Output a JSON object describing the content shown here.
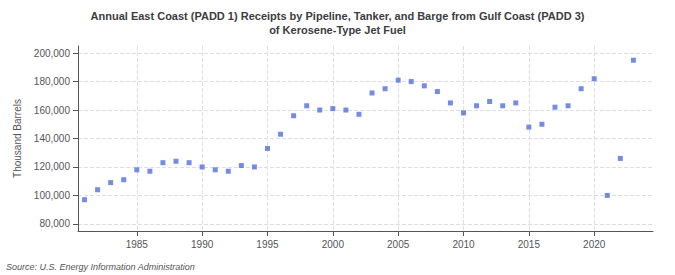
{
  "chart_data": {
    "type": "scatter",
    "title": "Annual East Coast (PADD 1) Receipts by Pipeline, Tanker, and Barge from Gulf Coast (PADD 3)\nof Kerosene-Type Jet Fuel",
    "ylabel": "Thousand Barrels",
    "annotations": [
      "Source: U.S. Energy Information Administration"
    ],
    "marker": "square",
    "grid": true,
    "x": [
      1981,
      1982,
      1983,
      1984,
      1985,
      1986,
      1987,
      1988,
      1989,
      1990,
      1991,
      1992,
      1993,
      1994,
      1995,
      1996,
      1997,
      1998,
      1999,
      2000,
      2001,
      2002,
      2003,
      2004,
      2005,
      2006,
      2007,
      2008,
      2009,
      2010,
      2011,
      2012,
      2013,
      2014,
      2015,
      2016,
      2017,
      2018,
      2019,
      2020,
      2021,
      2022,
      2023
    ],
    "values": [
      97000,
      104000,
      109000,
      111000,
      118000,
      117000,
      123000,
      124000,
      123000,
      120000,
      118000,
      117000,
      121000,
      120000,
      133000,
      143000,
      156000,
      163000,
      160000,
      161000,
      160000,
      157000,
      172000,
      175000,
      181000,
      180000,
      177000,
      173000,
      165000,
      158000,
      163000,
      166000,
      163000,
      165000,
      148000,
      150000,
      162000,
      163000,
      175000,
      182000,
      100000,
      126000,
      195000
    ],
    "xlim": [
      1980.5,
      2024.5
    ],
    "xticks": [
      1985,
      1990,
      1995,
      2000,
      2005,
      2010,
      2015,
      2020
    ],
    "ylim": [
      75000,
      205000
    ],
    "yticks": [
      {
        "value": 80000,
        "label": "80,000"
      },
      {
        "value": 100000,
        "label": "100,000"
      },
      {
        "value": 120000,
        "label": "120,000"
      },
      {
        "value": 140000,
        "label": "140,000"
      },
      {
        "value": 160000,
        "label": "160,000"
      },
      {
        "value": 180000,
        "label": "180,000"
      },
      {
        "value": 200000,
        "label": "200,000"
      }
    ]
  }
}
